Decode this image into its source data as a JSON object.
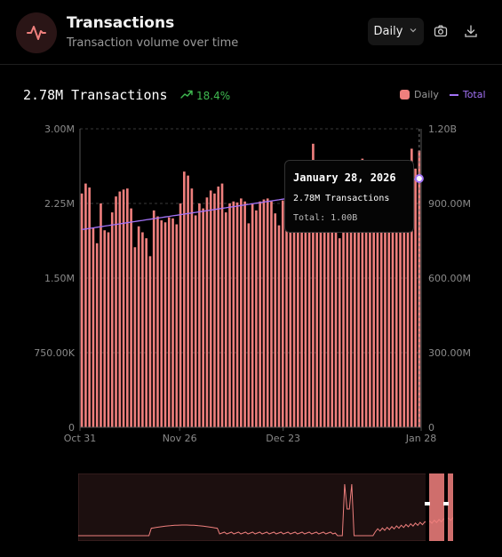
{
  "header": {
    "title": "Transactions",
    "subtitle": "Transaction volume over time",
    "interval_label": "Daily",
    "icons": [
      "pulse-icon",
      "chevron-down-icon",
      "camera-icon",
      "download-icon"
    ]
  },
  "summary": {
    "value_label": "2.78M Transactions",
    "change_label": "18.4%"
  },
  "legend": {
    "daily": "Daily",
    "total": "Total"
  },
  "tooltip": {
    "date": "January 28, 2026",
    "value_label": "2.78M Transactions",
    "total_label": "Total: 1.00B"
  },
  "colors": {
    "bar": "#ee7f7d",
    "line": "#a272f5",
    "positive": "#3fb950",
    "background": "#000000"
  },
  "chart_data": {
    "type": "bar",
    "x_start": "2025-10-31",
    "x_end": "2026-01-28",
    "x_ticks": [
      "Oct 31",
      "Nov 26",
      "Dec 23",
      "Jan 28"
    ],
    "y_ticks_left": [
      "0",
      "750.00K",
      "1.50M",
      "2.25M",
      "3.00M"
    ],
    "y_ticks_right": [
      "0",
      "300.00M",
      "600.00M",
      "900.00M",
      "1.20B"
    ],
    "ylim_left": [
      0,
      3000000
    ],
    "ylim_right": [
      0,
      1200000000
    ],
    "grid": true,
    "series": [
      {
        "name": "Daily",
        "type": "bar",
        "axis": "left",
        "values": [
          2350000,
          2450000,
          2410000,
          2000000,
          1850000,
          2250000,
          1980000,
          1960000,
          2160000,
          2320000,
          2370000,
          2390000,
          2400000,
          2200000,
          1810000,
          2020000,
          1960000,
          1900000,
          1720000,
          2180000,
          2120000,
          2080000,
          2060000,
          2110000,
          2100000,
          2040000,
          2250000,
          2570000,
          2530000,
          2400000,
          2130000,
          2250000,
          2200000,
          2310000,
          2380000,
          2350000,
          2420000,
          2450000,
          2160000,
          2250000,
          2270000,
          2260000,
          2300000,
          2270000,
          2050000,
          2250000,
          2180000,
          2270000,
          2290000,
          2300000,
          2270000,
          2150000,
          2030000,
          2280000,
          2090000,
          2100000,
          2230000,
          2420000,
          2480000,
          2600000,
          2480000,
          2850000,
          2380000,
          2410000,
          2400000,
          2300000,
          2150000,
          2050000,
          1900000,
          2100000,
          2200000,
          2300000,
          2350000,
          2400000,
          2700000,
          2400000,
          2300000,
          2200000,
          2100000,
          2200000,
          2300000,
          2400000,
          2500000,
          2550000,
          2600000,
          2500000,
          2400000,
          2800000,
          2600000,
          2780000
        ]
      },
      {
        "name": "Total",
        "type": "line",
        "axis": "right",
        "start": 795000000,
        "end": 1000000000
      }
    ]
  }
}
